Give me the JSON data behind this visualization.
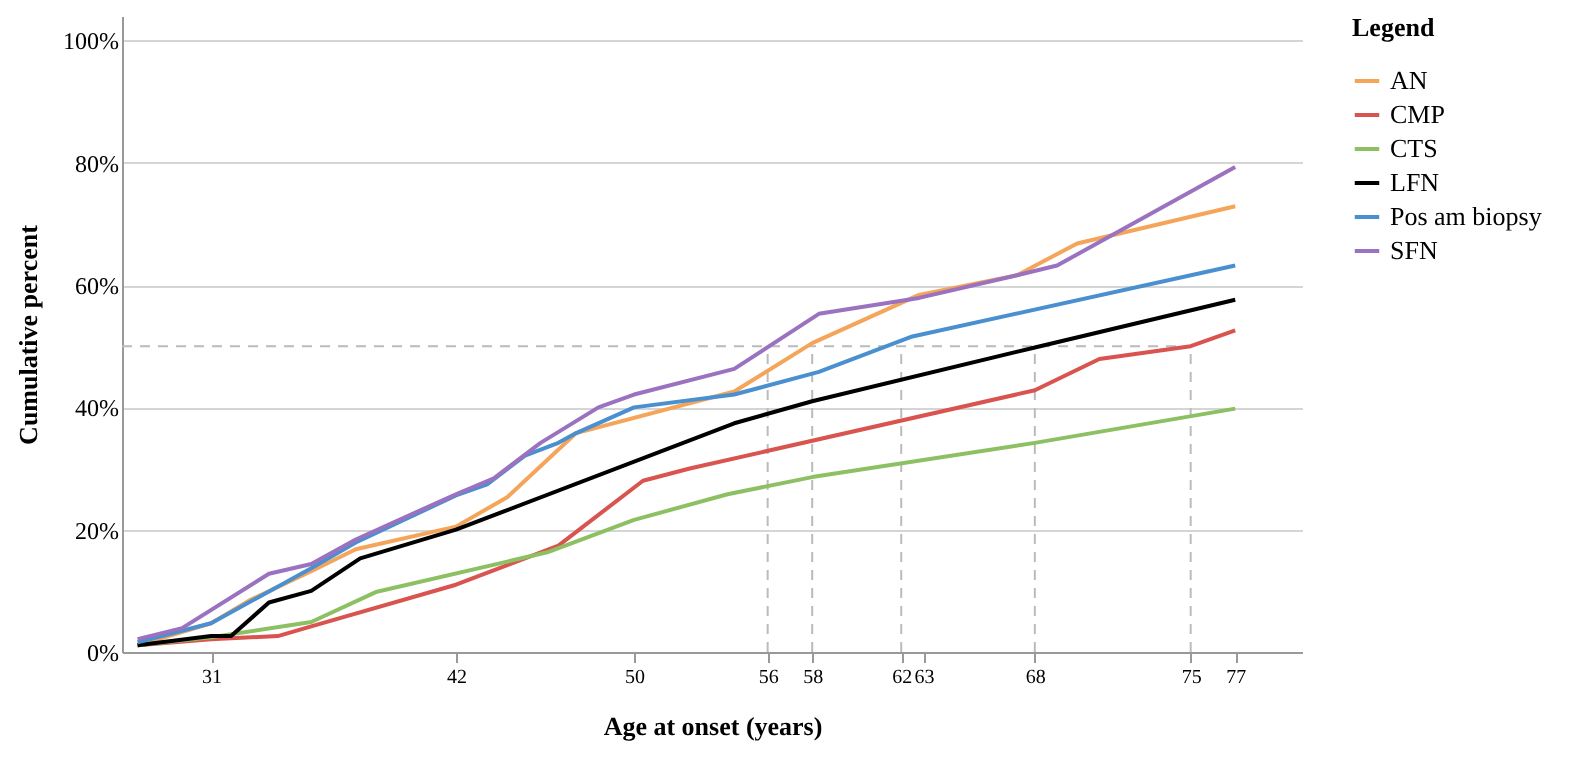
{
  "chart_data": {
    "type": "line",
    "xlabel": "Age at onset (years)",
    "ylabel": "Cumulative percent",
    "legend_title": "Legend",
    "legend": "right",
    "grid": "y",
    "line_style": "solid",
    "marker": "none",
    "xlim": [
      27,
      80
    ],
    "xticks": [
      31,
      42,
      50,
      56,
      58,
      62,
      63,
      68,
      75,
      77
    ],
    "ylim": [
      0,
      104
    ],
    "yticks": [
      {
        "value": 0,
        "label": "0%"
      },
      {
        "value": 20,
        "label": "20%"
      },
      {
        "value": 40,
        "label": "40%"
      },
      {
        "value": 60,
        "label": "60%"
      },
      {
        "value": 80,
        "label": "80%"
      },
      {
        "value": 100,
        "label": "100%"
      }
    ],
    "series": [
      {
        "name": "AN",
        "color": "#f5a55a",
        "x": [
          27.7,
          31,
          32.7,
          35.5,
          37.5,
          42,
          44.3,
          47.4,
          54.5,
          58,
          62.8,
          67.2,
          69.9,
          77
        ],
        "values": [
          1.1,
          4.7,
          8.4,
          13.2,
          16.8,
          20.5,
          25.3,
          35.8,
          42.6,
          50.5,
          58.4,
          61.6,
          66.8,
          72.9
        ]
      },
      {
        "name": "CMP",
        "color": "#d9534f",
        "x": [
          27.7,
          31,
          34,
          35.5,
          42,
          46.6,
          50.4,
          52.5,
          68,
          70.9,
          75,
          77
        ],
        "values": [
          1.1,
          2.1,
          2.6,
          4.2,
          11,
          17.4,
          28,
          30,
          42.8,
          47.9,
          50,
          52.6
        ]
      },
      {
        "name": "CTS",
        "color": "#8dc063",
        "x": [
          27.7,
          31,
          35.5,
          38.4,
          46.1,
          50,
          54.2,
          58,
          68,
          77
        ],
        "values": [
          1.1,
          2.4,
          4.9,
          9.8,
          16.3,
          21.6,
          25.8,
          28.6,
          34.2,
          39.8
        ]
      },
      {
        "name": "LFN",
        "color": "#000000",
        "x": [
          27.7,
          31,
          31.9,
          33.6,
          35.5,
          37.7,
          42,
          54.5,
          58,
          68,
          77
        ],
        "values": [
          1.1,
          2.6,
          2.6,
          8.1,
          10,
          15.3,
          20,
          37.4,
          41,
          49.8,
          57.6
        ]
      },
      {
        "name": "Pos am biopsy",
        "color": "#4a90d0",
        "x": [
          27.7,
          31,
          35.5,
          37.5,
          42,
          43.4,
          45.1,
          46.6,
          47.4,
          50,
          54.5,
          58.3,
          62.5,
          77
        ],
        "values": [
          1.6,
          4.7,
          13.7,
          17.9,
          25.6,
          27.4,
          32.1,
          34.2,
          35.8,
          40,
          42.1,
          45.8,
          51.6,
          63.2
        ]
      },
      {
        "name": "SFN",
        "color": "#9b72c0",
        "x": [
          27.7,
          29.7,
          33.6,
          35.5,
          37.5,
          42,
          43.7,
          45.8,
          48.4,
          50,
          54.5,
          58.3,
          62.8,
          67.2,
          69,
          77
        ],
        "values": [
          2.1,
          3.9,
          12.8,
          14.4,
          18.4,
          25.8,
          28.4,
          34.2,
          40,
          42.1,
          46.3,
          55.3,
          57.9,
          61.6,
          63.2,
          79.3
        ]
      }
    ],
    "ref_lines": [
      {
        "axis": "y",
        "value": 50,
        "color": "#bbbbbb",
        "line_style": "dashed"
      },
      {
        "axis": "x",
        "value": 56,
        "color": "#bbbbbb",
        "line_style": "dashed"
      },
      {
        "axis": "x",
        "value": 58,
        "color": "#bbbbbb",
        "line_style": "dashed"
      },
      {
        "axis": "x",
        "value": 62,
        "color": "#bbbbbb",
        "line_style": "dashed"
      },
      {
        "axis": "x",
        "value": 68,
        "color": "#bbbbbb",
        "line_style": "dashed"
      },
      {
        "axis": "x",
        "value": 75,
        "color": "#bbbbbb",
        "line_style": "dashed"
      }
    ]
  }
}
